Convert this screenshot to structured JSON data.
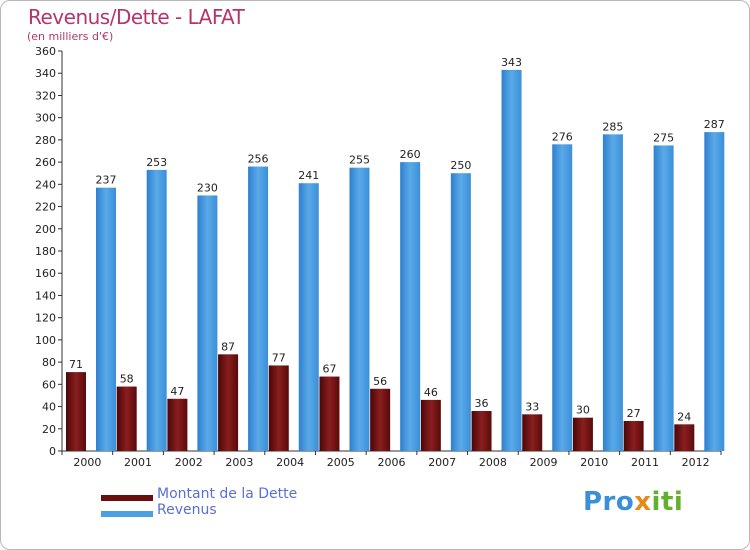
{
  "title": "Revenus/Dette - LAFAT",
  "subtitle": "(en milliers d'€)",
  "colors": {
    "title": "#b5356b",
    "dette": "#7a1414",
    "revenus": "#3a8fd8",
    "legend_text": "#5a6fd6"
  },
  "legend": [
    {
      "label": "Montant de la Dette",
      "color": "#6a0f0f"
    },
    {
      "label": "Revenus",
      "color": "#4aa0e2"
    }
  ],
  "logo": {
    "p1": "Pro",
    "p2": "x",
    "p3": "iti"
  },
  "chart_data": {
    "type": "bar",
    "categories": [
      "2000",
      "2001",
      "2002",
      "2003",
      "2004",
      "2005",
      "2006",
      "2007",
      "2008",
      "2009",
      "2010",
      "2011",
      "2012"
    ],
    "series": [
      {
        "name": "Montant de la Dette",
        "values": [
          71,
          58,
          47,
          87,
          77,
          67,
          56,
          46,
          36,
          33,
          30,
          27,
          24
        ]
      },
      {
        "name": "Revenus",
        "values": [
          237,
          253,
          230,
          256,
          241,
          255,
          260,
          250,
          343,
          276,
          285,
          275,
          287
        ]
      }
    ],
    "ylim": [
      0,
      360
    ],
    "yticks": [
      0,
      20,
      40,
      60,
      80,
      100,
      120,
      140,
      160,
      180,
      200,
      220,
      240,
      260,
      280,
      300,
      320,
      340,
      360
    ],
    "grid": false,
    "legend_position": "bottom-left"
  }
}
